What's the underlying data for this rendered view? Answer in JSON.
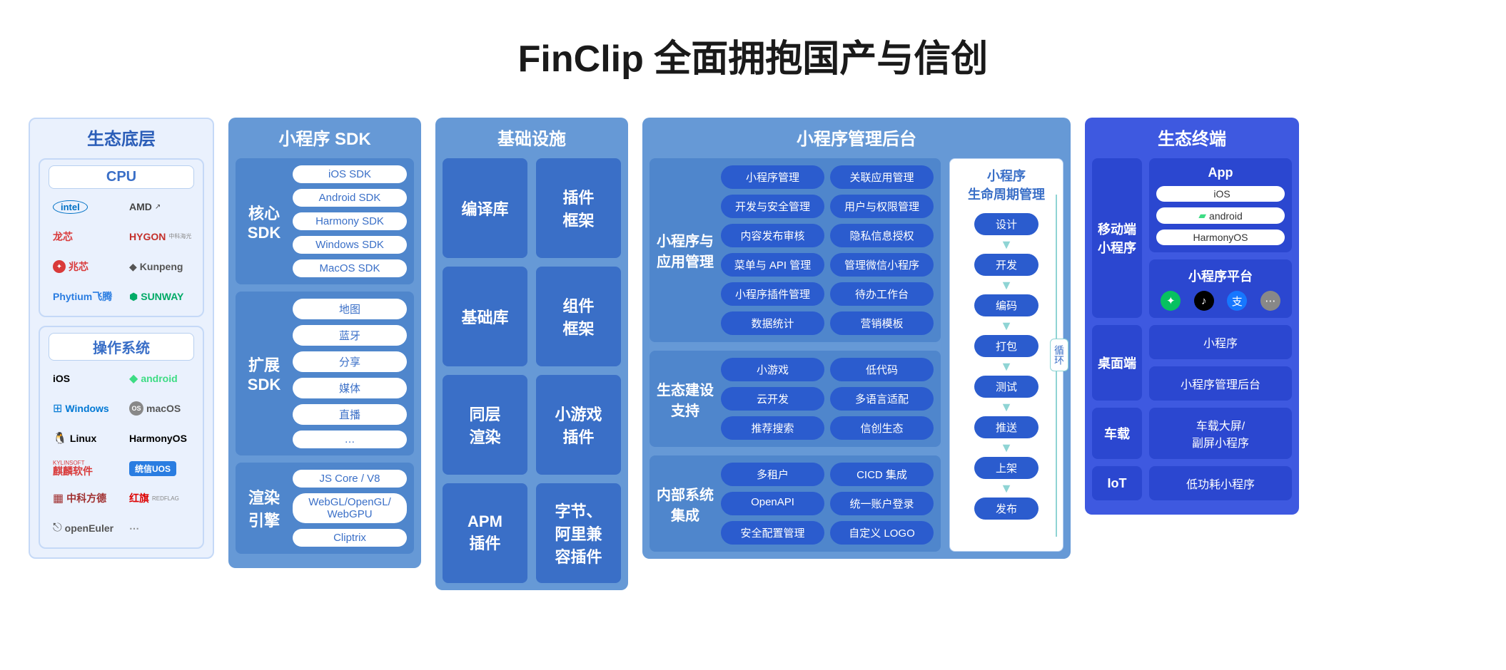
{
  "title": "FinClip 全面拥抱国产与信创",
  "colors": {
    "page_bg": "#ffffff",
    "title_text": "#1a1a1a",
    "light_panel_bg": "#eaf1fd",
    "light_panel_border": "#c5d9f7",
    "light_header_text": "#2c5eb8",
    "sub_header_bg": "#ffffff",
    "sub_header_border": "#b8d0f0",
    "sub_header_text": "#3a6fc7",
    "blue_panel_bg": "#6699d6",
    "blue_inner_bg": "#4f86cc",
    "blue_deep_bg": "#3a6fc7",
    "mgmt_pill_bg": "#2b5cce",
    "dark_panel_bg": "#3e59e0",
    "dark_inner_bg": "#2b47d0",
    "lifecycle_arrow": "#8fd4d4",
    "white": "#ffffff"
  },
  "fonts": {
    "title_size": 52,
    "panel_header_size": 24,
    "sub_header_size": 20,
    "group_label_size": 20,
    "pill_size": 15,
    "logo_size": 14
  },
  "col1": {
    "header": "生态底层",
    "cpu": {
      "header": "CPU",
      "logos": [
        {
          "text": "intel",
          "color": "#0071c5",
          "style": "oval"
        },
        {
          "text": "AMD",
          "suffix": "↗",
          "color": "#444"
        },
        {
          "text": "龙芯",
          "color": "#d93a3a"
        },
        {
          "text": "HYGON",
          "sub": "中科海光",
          "color": "#c4302b"
        },
        {
          "text": "兆芯",
          "color": "#d93a3a",
          "badge": true
        },
        {
          "text": "Kunpeng",
          "icon": "◆",
          "color": "#555"
        },
        {
          "text": "Phytium飞腾",
          "color": "#2a7de1"
        },
        {
          "text": "SUNWAY",
          "icon": "⬢",
          "color": "#0a6"
        }
      ]
    },
    "os": {
      "header": "操作系统",
      "logos": [
        {
          "text": "iOS",
          "icon": "",
          "color": "#000"
        },
        {
          "text": "android",
          "icon": "◆",
          "color": "#3ddc84"
        },
        {
          "text": "Windows",
          "icon": "⊞",
          "color": "#0078d4"
        },
        {
          "text": "macOS",
          "icon": "OS",
          "color": "#555",
          "badge_grey": true
        },
        {
          "text": "Linux",
          "icon": "🐧",
          "color": "#000"
        },
        {
          "text": "HarmonyOS",
          "color": "#000"
        },
        {
          "text": "麒麟软件",
          "sup": "KYLINSOFT",
          "color": "#d93a3a"
        },
        {
          "text": "统信UOS",
          "color": "#fff",
          "bg": "#2a7de1",
          "pill": true
        },
        {
          "text": "中科方德",
          "icon": "▦",
          "color": "#a03030"
        },
        {
          "text": "红旗",
          "sub": "REDFLAG",
          "color": "#d00"
        },
        {
          "text": "openEuler",
          "icon": "⎋",
          "color": "#555"
        },
        {
          "text": "⋯",
          "color": "#888"
        }
      ]
    }
  },
  "col2": {
    "header": "小程序 SDK",
    "groups": [
      {
        "label": "核心\nSDK",
        "items": [
          "iOS SDK",
          "Android SDK",
          "Harmony SDK",
          "Windows SDK",
          "MacOS SDK"
        ]
      },
      {
        "label": "扩展\nSDK",
        "items": [
          "地图",
          "蓝牙",
          "分享",
          "媒体",
          "直播",
          "…"
        ]
      },
      {
        "label": "渲染\n引擎",
        "items": [
          "JS Core / V8",
          "WebGL/OpenGL/\nWebGPU",
          "Cliptrix"
        ]
      }
    ]
  },
  "col3": {
    "header": "基础设施",
    "boxes": [
      "编译库",
      "插件\n框架",
      "基础库",
      "组件\n框架",
      "同层\n渲染",
      "小游戏\n插件",
      "APM\n插件",
      "字节、\n阿里兼\n容插件"
    ]
  },
  "col4": {
    "header": "小程序管理后台",
    "groups": [
      {
        "label": "小程序与\n应用管理",
        "items": [
          "小程序管理",
          "关联应用管理",
          "开发与安全管理",
          "用户与权限管理",
          "内容发布审核",
          "隐私信息授权",
          "菜单与 API 管理",
          "管理微信小程序",
          "小程序插件管理",
          "待办工作台",
          "数据统计",
          "营销模板"
        ]
      },
      {
        "label": "生态建设\n支持",
        "items": [
          "小游戏",
          "低代码",
          "云开发",
          "多语言适配",
          "推荐搜索",
          "信创生态"
        ]
      },
      {
        "label": "内部系统\n集成",
        "items": [
          "多租户",
          "CICD 集成",
          "OpenAPI",
          "统一账户登录",
          "安全配置管理",
          "自定义 LOGO"
        ]
      }
    ],
    "lifecycle": {
      "header": "小程序\n生命周期管理",
      "steps": [
        "设计",
        "开发",
        "编码",
        "打包",
        "测试",
        "推送",
        "上架",
        "发布"
      ],
      "loop_label": "循环"
    }
  },
  "col5": {
    "header": "生态终端",
    "rows": [
      {
        "label": "移动端\n小程序",
        "app_box": {
          "header": "App",
          "os": [
            "iOS",
            "android",
            "HarmonyOS"
          ]
        },
        "platform_box": {
          "header": "小程序平台",
          "icons": [
            {
              "glyph": "✦",
              "bg": "#07c160"
            },
            {
              "glyph": "♪",
              "bg": "#000000"
            },
            {
              "glyph": "支",
              "bg": "#1677ff"
            },
            {
              "glyph": "⋯",
              "bg": "#888888"
            }
          ]
        }
      },
      {
        "label": "桌面端",
        "boxes": [
          "小程序",
          "小程序管理后台"
        ]
      },
      {
        "label": "车载",
        "boxes": [
          "车载大屏/\n副屏小程序"
        ]
      },
      {
        "label": "IoT",
        "boxes": [
          "低功耗小程序"
        ]
      }
    ]
  }
}
